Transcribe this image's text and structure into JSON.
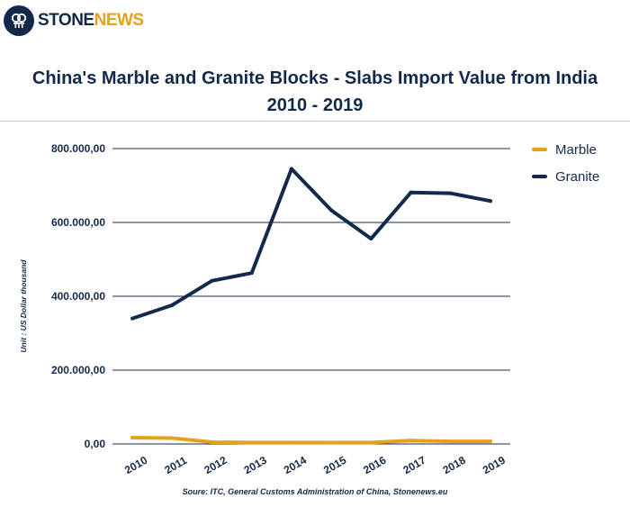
{
  "logo": {
    "part1": "STONE",
    "part2": "NEWS"
  },
  "title_line1": "China's Marble and Granite Blocks - Slabs Import Value from India",
  "title_line2": "2010 - 2019",
  "source": "Soure: ITC, General Customs Administration of China, Stonenews.eu",
  "colors": {
    "navy": "#13294b",
    "orange": "#e3a21a",
    "grid": "#13294b"
  },
  "chart_data": {
    "type": "line",
    "title": "China's Marble and Granite Blocks - Slabs Import Value from India 2010 - 2019",
    "ylabel": "Unit : US Dollar thousand",
    "xlabel": "",
    "x": [
      "2010",
      "2011",
      "2012",
      "2013",
      "2014",
      "2015",
      "2016",
      "2017",
      "2018",
      "2019"
    ],
    "ylim": [
      0,
      800000
    ],
    "yticks": [
      0,
      200000,
      400000,
      600000,
      800000
    ],
    "ytick_labels": [
      "0,00",
      "200.000,00",
      "400.000,00",
      "600.000,00",
      "800.000,00"
    ],
    "grid": true,
    "legend_position": "top-right",
    "series": [
      {
        "name": "Marble",
        "color": "#e3a21a",
        "values": [
          17000,
          16000,
          5000,
          4000,
          4000,
          4000,
          4000,
          9000,
          7000,
          7000
        ]
      },
      {
        "name": "Granite",
        "color": "#13294b",
        "values": [
          340000,
          376000,
          442000,
          463000,
          745000,
          633000,
          556000,
          681000,
          679000,
          658000
        ]
      }
    ]
  }
}
